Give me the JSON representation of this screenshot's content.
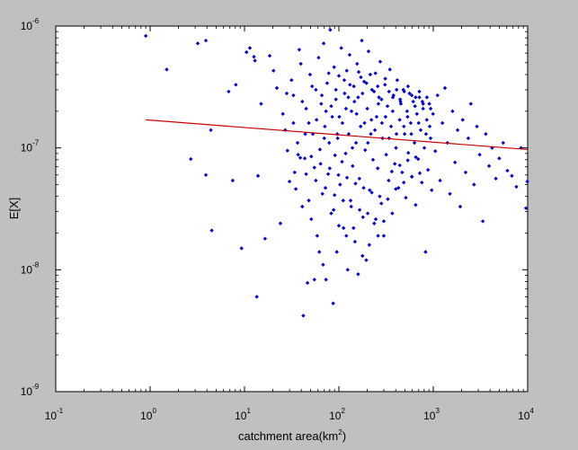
{
  "chart_data": {
    "type": "scatter",
    "title": "",
    "xlabel": "catchment area(km",
    "xlabel_sup": "2",
    "xlabel_suffix": ")",
    "ylabel": "E[X]",
    "xscale": "log",
    "yscale": "log",
    "xlim": [
      0.1,
      10000
    ],
    "ylim": [
      1e-09,
      1e-06
    ],
    "xticks": [
      {
        "value": 0.1,
        "base": "10",
        "exp": "-1"
      },
      {
        "value": 1,
        "base": "10",
        "exp": "0"
      },
      {
        "value": 10,
        "base": "10",
        "exp": "1"
      },
      {
        "value": 100,
        "base": "10",
        "exp": "2"
      },
      {
        "value": 1000,
        "base": "10",
        "exp": "3"
      },
      {
        "value": 10000,
        "base": "10",
        "exp": "4"
      }
    ],
    "yticks": [
      {
        "value": 1e-09,
        "base": "10",
        "exp": "-9"
      },
      {
        "value": 1e-08,
        "base": "10",
        "exp": "-8"
      },
      {
        "value": 1e-07,
        "base": "10",
        "exp": "-7"
      },
      {
        "value": 1e-06,
        "base": "10",
        "exp": "-6"
      }
    ],
    "grid": false,
    "legend": "none",
    "background_color": "#c0c0c0",
    "plot_area_color": "#ffffff",
    "marker_color": "#0000cc",
    "marker": "diamond",
    "fit_line": {
      "color": "#cc0000",
      "points": [
        [
          0.9,
          1.7e-07
        ],
        [
          10000,
          9.7e-08
        ]
      ]
    },
    "series": [
      {
        "marker_color": "#0000cc",
        "points": [
          [
            0.9,
            8.3e-07
          ],
          [
            1.5,
            4.4e-07
          ],
          [
            3.2,
            7.2e-07
          ],
          [
            3.9,
            7.6e-07
          ],
          [
            2.7,
            8.1e-08
          ],
          [
            3.9,
            6e-08
          ],
          [
            4.5,
            2.1e-08
          ],
          [
            4.4,
            1.4e-07
          ],
          [
            6.8,
            2.9e-07
          ],
          [
            8.1,
            3.3e-07
          ],
          [
            7.5,
            5.4e-08
          ],
          [
            9.3,
            1.5e-08
          ],
          [
            10.5,
            6.1e-07
          ],
          [
            11.4,
            6.6e-07
          ],
          [
            12.6,
            5.6e-07
          ],
          [
            12.9,
            5.2e-07
          ],
          [
            13.9,
            5.9e-08
          ],
          [
            13.5,
            6e-09
          ],
          [
            15.0,
            2.3e-07
          ],
          [
            16.5,
            1.8e-08
          ],
          [
            18.5,
            5.7e-07
          ],
          [
            20.3,
            4.3e-07
          ],
          [
            22.0,
            3.1e-07
          ],
          [
            24.0,
            2.4e-08
          ],
          [
            25.5,
            1.9e-07
          ],
          [
            27.0,
            1.4e-07
          ],
          [
            28.5,
            9.5e-08
          ],
          [
            30.0,
            5.3e-08
          ],
          [
            31.5,
            3.6e-07
          ],
          [
            33.0,
            2.7e-07
          ],
          [
            35.0,
            4.6e-08
          ],
          [
            36.5,
            1.1e-07
          ],
          [
            38.0,
            6.4e-07
          ],
          [
            39.5,
            4.9e-07
          ],
          [
            41.0,
            3.3e-08
          ],
          [
            42.0,
            4.2e-09
          ],
          [
            43.5,
            8.2e-08
          ],
          [
            45.0,
            2.1e-07
          ],
          [
            46.5,
            7.8e-09
          ],
          [
            48.0,
            1.6e-07
          ],
          [
            49.5,
            4e-07
          ],
          [
            51.0,
            2.6e-08
          ],
          [
            53.0,
            1.3e-07
          ],
          [
            55.0,
            6.9e-08
          ],
          [
            57.0,
            3e-07
          ],
          [
            59.0,
            1.9e-08
          ],
          [
            61.0,
            5.5e-07
          ],
          [
            63.0,
            9.7e-08
          ],
          [
            65.0,
            2.3e-07
          ],
          [
            67.0,
            4.2e-08
          ],
          [
            69.0,
            7.2e-07
          ],
          [
            71.0,
            1.5e-07
          ],
          [
            73.0,
            8.3e-09
          ],
          [
            75.0,
            3.4e-07
          ],
          [
            77.0,
            6.1e-08
          ],
          [
            79.0,
            1.1e-07
          ],
          [
            81.0,
            9.3e-07
          ],
          [
            83.0,
            2.9e-08
          ],
          [
            85.0,
            1.8e-07
          ],
          [
            87.0,
            5.3e-09
          ],
          [
            89.0,
            4.6e-07
          ],
          [
            91.0,
            8.7e-08
          ],
          [
            93.0,
            2.5e-07
          ],
          [
            95.0,
            1.4e-08
          ],
          [
            97.0,
            1.2e-07
          ],
          [
            100.0,
            3.9e-07
          ],
          [
            103.0,
            5e-08
          ],
          [
            106.0,
            6.6e-07
          ],
          [
            109.0,
            1.6e-07
          ],
          [
            112.0,
            2.2e-08
          ],
          [
            115.0,
            2.8e-07
          ],
          [
            118.0,
            9e-08
          ],
          [
            121.0,
            4.3e-07
          ],
          [
            124.0,
            1e-08
          ],
          [
            127.0,
            1.3e-07
          ],
          [
            130.0,
            5.8e-07
          ],
          [
            133.0,
            3.7e-08
          ],
          [
            136.0,
            2e-07
          ],
          [
            140.0,
            7.1e-08
          ],
          [
            144.0,
            3.2e-07
          ],
          [
            148.0,
            1.7e-08
          ],
          [
            152.0,
            1.1e-07
          ],
          [
            156.0,
            4.9e-07
          ],
          [
            160.0,
            2.6e-07
          ],
          [
            165.0,
            5.6e-08
          ],
          [
            170.0,
            1.5e-07
          ],
          [
            175.0,
            7.6e-07
          ],
          [
            180.0,
            2.7e-08
          ],
          [
            185.0,
            3.5e-07
          ],
          [
            190.0,
            9.6e-08
          ],
          [
            195.0,
            1.2e-08
          ],
          [
            200.0,
            2.1e-07
          ],
          [
            206.0,
            6.2e-07
          ],
          [
            212.0,
            4.5e-08
          ],
          [
            218.0,
            1.3e-07
          ],
          [
            224.0,
            3e-07
          ],
          [
            230.0,
            8e-08
          ],
          [
            237.0,
            2.4e-08
          ],
          [
            244.0,
            4.1e-07
          ],
          [
            251.0,
            1.8e-07
          ],
          [
            258.0,
            6.8e-08
          ],
          [
            266.0,
            2.6e-07
          ],
          [
            274.0,
            5.1e-07
          ],
          [
            282.0,
            3.5e-08
          ],
          [
            290.0,
            1.2e-07
          ],
          [
            299.0,
            1.9e-08
          ],
          [
            308.0,
            3.3e-07
          ],
          [
            317.0,
            8.8e-08
          ],
          [
            327.0,
            2.2e-07
          ],
          [
            337.0,
            5.4e-08
          ],
          [
            347.0,
            4.4e-07
          ],
          [
            357.0,
            1.5e-07
          ],
          [
            368.0,
            2.9e-08
          ],
          [
            379.0,
            2.7e-07
          ],
          [
            391.0,
            7.4e-08
          ],
          [
            403.0,
            1e-07
          ],
          [
            415.0,
            3.6e-07
          ],
          [
            428.0,
            4.7e-08
          ],
          [
            441.0,
            1.7e-07
          ],
          [
            454.0,
            2.3e-07
          ],
          [
            468.0,
            6.3e-08
          ],
          [
            482.0,
            3e-07
          ],
          [
            497.0,
            1.3e-07
          ],
          [
            512.0,
            3.9e-08
          ],
          [
            528.0,
            2e-07
          ],
          [
            544.0,
            9.1e-08
          ],
          [
            560.0,
            2.8e-07
          ],
          [
            577.0,
            1.6e-07
          ],
          [
            595.0,
            5.8e-08
          ],
          [
            613.0,
            2.4e-07
          ],
          [
            632.0,
            1.1e-07
          ],
          [
            651.0,
            3.4e-08
          ],
          [
            671.0,
            1.9e-07
          ],
          [
            692.0,
            8.1e-08
          ],
          [
            713.0,
            2.6e-07
          ],
          [
            735.0,
            1.4e-07
          ],
          [
            757.0,
            5.2e-08
          ],
          [
            780.0,
            2.1e-07
          ],
          [
            804.0,
            1e-07
          ],
          [
            829.0,
            1.4e-08
          ],
          [
            854.0,
            1.7e-07
          ],
          [
            880.0,
            6.6e-08
          ],
          [
            907.0,
            2.3e-07
          ],
          [
            935.0,
            1.2e-07
          ],
          [
            963.0,
            4.5e-08
          ],
          [
            993.0,
            1.9e-07
          ],
          [
            1050.0,
            9.4e-08
          ],
          [
            1110.0,
            2.7e-07
          ],
          [
            1180.0,
            5.4e-08
          ],
          [
            1250.0,
            1.6e-07
          ],
          [
            1330.0,
            3.1e-07
          ],
          [
            1410.0,
            1.1e-07
          ],
          [
            1500.0,
            4.2e-08
          ],
          [
            1600.0,
            2e-07
          ],
          [
            1700.0,
            7.6e-08
          ],
          [
            1810.0,
            1.4e-07
          ],
          [
            1930.0,
            3.3e-08
          ],
          [
            2050.0,
            1.7e-07
          ],
          [
            2200.0,
            6.3e-08
          ],
          [
            2350.0,
            1.2e-07
          ],
          [
            2500.0,
            2.3e-07
          ],
          [
            2700.0,
            5e-08
          ],
          [
            2900.0,
            1.5e-07
          ],
          [
            3100.0,
            8.8e-08
          ],
          [
            3350.0,
            2.5e-08
          ],
          [
            3600.0,
            1.3e-07
          ],
          [
            3900.0,
            7.1e-08
          ],
          [
            4200.0,
            1e-07
          ],
          [
            4600.0,
            5.6e-08
          ],
          [
            5000.0,
            8.2e-08
          ],
          [
            5500.0,
            1.1e-07
          ],
          [
            6100.0,
            6.5e-08
          ],
          [
            6800.0,
            5.9e-08
          ],
          [
            7600.0,
            4.8e-08
          ],
          [
            8500.0,
            1e-07
          ],
          [
            9600.0,
            3.2e-08
          ],
          [
            9900.0,
            5.3e-08
          ],
          [
            48.0,
            3.7e-08
          ],
          [
            62.0,
            1.4e-08
          ],
          [
            73.0,
            2e-07
          ],
          [
            88.0,
            3.1e-08
          ],
          [
            96.0,
            1.3e-07
          ],
          [
            108.0,
            7.7e-08
          ],
          [
            126.0,
            2.6e-07
          ],
          [
            139.0,
            1e-07
          ],
          [
            154.0,
            1.9e-07
          ],
          [
            171.0,
            3.8e-07
          ],
          [
            187.0,
            1.6e-07
          ],
          [
            203.0,
            1.1e-07
          ],
          [
            221.0,
            1.7e-07
          ],
          [
            241.0,
            1.4e-07
          ],
          [
            262.0,
            2.3e-07
          ],
          [
            286.0,
            1.6e-07
          ],
          [
            312.0,
            1.8e-07
          ],
          [
            340.0,
            1.2e-07
          ],
          [
            372.0,
            2e-07
          ],
          [
            407.0,
            1.3e-07
          ],
          [
            446.0,
            2.5e-07
          ],
          [
            488.0,
            1.5e-07
          ],
          [
            534.0,
            1.8e-07
          ],
          [
            585.0,
            1.3e-07
          ],
          [
            640.0,
            2.2e-07
          ],
          [
            700.0,
            1.6e-07
          ],
          [
            766.0,
            2.4e-07
          ],
          [
            838.0,
            1.3e-07
          ],
          [
            917.0,
            1.5e-07
          ],
          [
            28.0,
            2.8e-07
          ],
          [
            33.0,
            1.6e-07
          ],
          [
            37.0,
            8.8e-08
          ],
          [
            41.0,
            2.4e-07
          ],
          [
            44.0,
            1.3e-07
          ],
          [
            52.0,
            3.2e-07
          ],
          [
            58.0,
            1.7e-07
          ],
          [
            66.0,
            2.7e-07
          ],
          [
            70.0,
            1.2e-07
          ],
          [
            78.0,
            4.1e-07
          ],
          [
            83.0,
            2.2e-07
          ],
          [
            93.0,
            3e-07
          ],
          [
            101.0,
            1.8e-07
          ],
          [
            114.0,
            3.6e-07
          ],
          [
            119.0,
            2.1e-07
          ],
          [
            131.0,
            3.3e-07
          ],
          [
            146.0,
            2.4e-07
          ],
          [
            162.0,
            4.2e-07
          ],
          [
            178.0,
            2.8e-07
          ],
          [
            196.0,
            3.4e-07
          ],
          [
            215.0,
            4e-07
          ],
          [
            236.0,
            2.9e-07
          ],
          [
            258.0,
            3.2e-07
          ],
          [
            283.0,
            2.5e-07
          ],
          [
            310.0,
            3.7e-07
          ],
          [
            340.0,
            2.9e-07
          ],
          [
            373.0,
            2.6e-07
          ],
          [
            409.0,
            3e-07
          ],
          [
            449.0,
            2.4e-07
          ],
          [
            492.0,
            2.9e-07
          ],
          [
            540.0,
            3.2e-07
          ],
          [
            592.0,
            2.7e-07
          ],
          [
            650.0,
            2.6e-07
          ],
          [
            712.0,
            2.9e-07
          ],
          [
            781.0,
            2.3e-07
          ],
          [
            856.0,
            2.6e-07
          ],
          [
            938.0,
            2.1e-07
          ],
          [
            34.0,
            6.3e-08
          ],
          [
            39.0,
            8.3e-08
          ],
          [
            45.0,
            6.1e-08
          ],
          [
            51.0,
            8.5e-08
          ],
          [
            57.0,
            5.4e-08
          ],
          [
            64.0,
            7.4e-08
          ],
          [
            72.0,
            4.7e-08
          ],
          [
            80.0,
            6.8e-08
          ],
          [
            90.0,
            4.1e-08
          ],
          [
            99.0,
            6e-08
          ],
          [
            111.0,
            3.7e-08
          ],
          [
            122.0,
            5.7e-08
          ],
          [
            135.0,
            3.3e-08
          ],
          [
            150.0,
            5.1e-08
          ],
          [
            166.0,
            3.1e-08
          ],
          [
            183.0,
            4.7e-08
          ],
          [
            202.0,
            2.9e-08
          ],
          [
            223.0,
            4.3e-08
          ],
          [
            246.0,
            2.6e-08
          ],
          [
            271.0,
            4e-08
          ],
          [
            299.0,
            2.5e-08
          ],
          [
            330.0,
            3.8e-08
          ],
          [
            364.0,
            6.4e-08
          ],
          [
            401.0,
            4.6e-08
          ],
          [
            442.0,
            7.2e-08
          ],
          [
            487.0,
            5.2e-08
          ],
          [
            537.0,
            7.9e-08
          ],
          [
            592.0,
            5.8e-08
          ],
          [
            653.0,
            8.4e-08
          ],
          [
            720.0,
            6.2e-08
          ],
          [
            160.0,
            9.2e-09
          ],
          [
            178.0,
            1.3e-08
          ],
          [
            210.0,
            1.6e-08
          ],
          [
            120.0,
            1.9e-08
          ],
          [
            55.0,
            8.3e-09
          ],
          [
            68.0,
            1.1e-08
          ],
          [
            100.0,
            2.3e-08
          ],
          [
            143.0,
            2.2e-08
          ],
          [
            260.0,
            1.9e-08
          ]
        ]
      }
    ]
  }
}
